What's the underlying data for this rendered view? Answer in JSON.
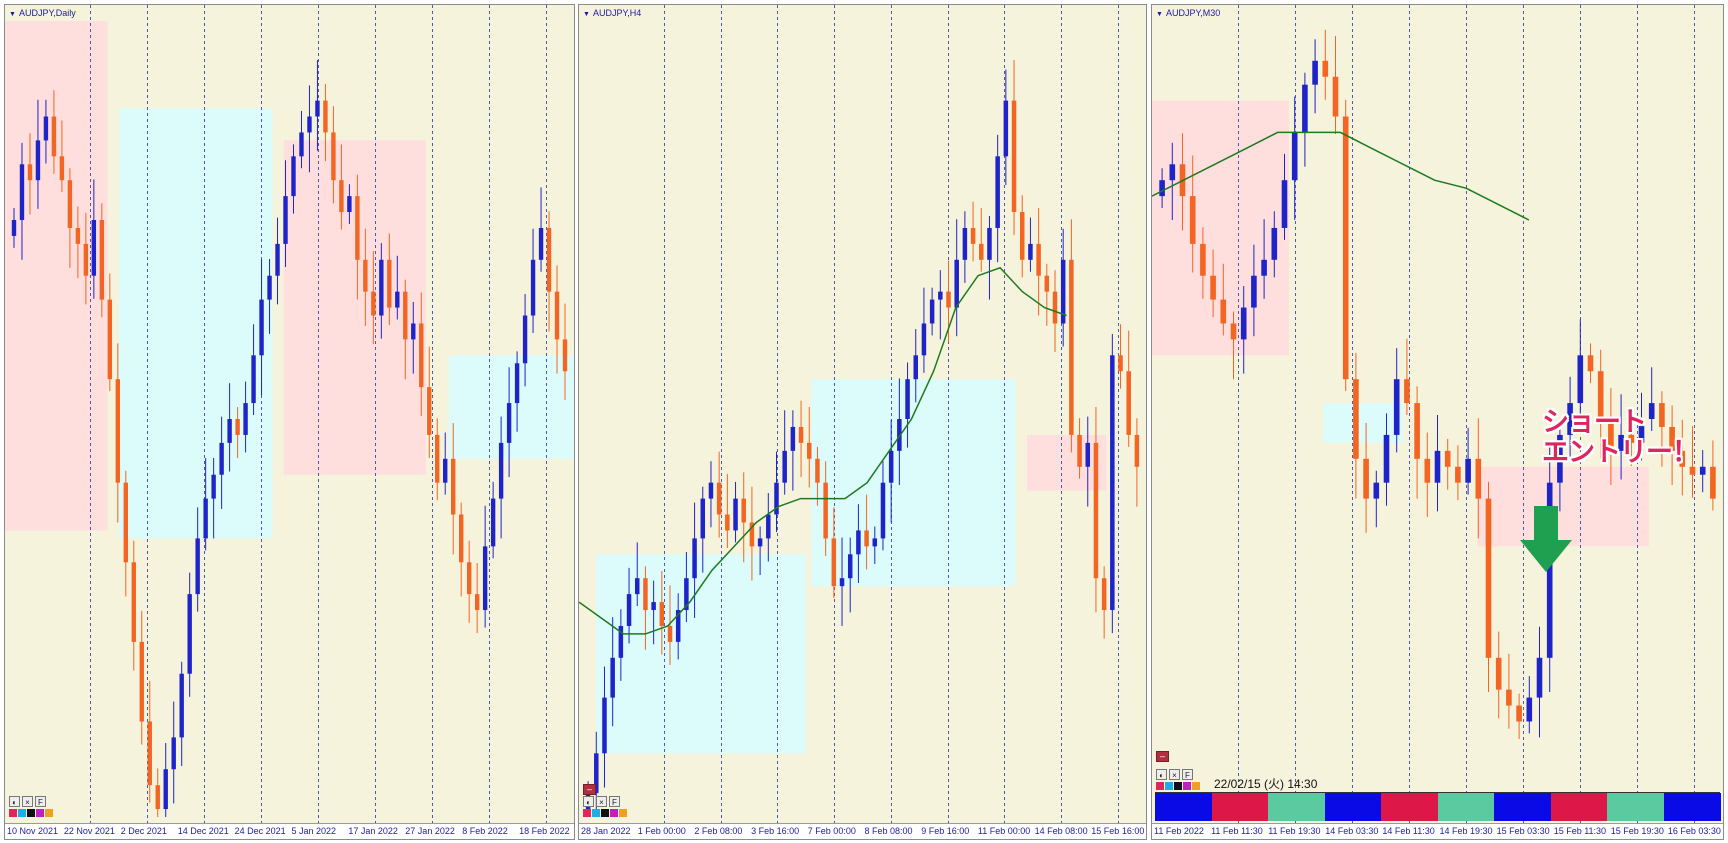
{
  "charts": [
    {
      "id": "daily",
      "title": "AUDJPY,Daily",
      "x_labels": [
        "10 Nov 2021",
        "22 Nov 2021",
        "2 Dec 2021",
        "14 Dec 2021",
        "24 Dec 2021",
        "5 Jan 2022",
        "17 Jan 2022",
        "27 Jan 2022",
        "8 Feb 2022",
        "18 Feb 2022"
      ],
      "tools": {
        "close_label": "×",
        "f_label": "F"
      }
    },
    {
      "id": "h4",
      "title": "AUDJPY,H4",
      "x_labels": [
        "28 Jan 2022",
        "1 Feb 00:00",
        "2 Feb 08:00",
        "3 Feb 16:00",
        "7 Feb 00:00",
        "8 Feb 08:00",
        "9 Feb 16:00",
        "11 Feb 00:00",
        "14 Feb 08:00",
        "15 Feb 16:00"
      ],
      "tools": {
        "close_label": "×",
        "f_label": "F"
      }
    },
    {
      "id": "m30",
      "title": "AUDJPY,M30",
      "x_labels": [
        "11 Feb 2022",
        "11 Feb 11:30",
        "11 Feb 19:30",
        "14 Feb 03:30",
        "14 Feb 11:30",
        "14 Feb 19:30",
        "15 Feb 03:30",
        "15 Feb 11:30",
        "15 Feb 19:30",
        "16 Feb 03:30"
      ],
      "tools": {
        "close_label": "×",
        "f_label": "F"
      },
      "timestamp": "22/02/15 (火) 14:30",
      "annotation": [
        "ショート",
        "エントリー！"
      ]
    }
  ],
  "colors": {
    "background": "#f6f3dc",
    "bull_candle": "#1e24c8",
    "bear_candle": "#f26522",
    "ma_line": "#1e7a1e",
    "zone_pink": "#ffdede",
    "zone_cyan": "#dcfbfb",
    "grid_line": "#2233aa",
    "annotation_text": "#e0245e",
    "arrow": "#1fa050",
    "session_colors": [
      "#0a0ae6",
      "#dd1848",
      "#5ccaa0"
    ]
  },
  "session_bar": [
    "blue",
    "red",
    "green",
    "blue",
    "red",
    "green",
    "blue",
    "red",
    "green",
    "blue"
  ],
  "chart_data": [
    {
      "type": "candlestick",
      "title": "AUDJPY,Daily",
      "x": [
        "10 Nov 2021",
        "22 Nov 2021",
        "2 Dec 2021",
        "14 Dec 2021",
        "24 Dec 2021",
        "5 Jan 2022",
        "17 Jan 2022",
        "27 Jan 2022",
        "8 Feb 2022",
        "18 Feb 2022"
      ],
      "close_path": [
        0.75,
        0.82,
        0.8,
        0.85,
        0.88,
        0.83,
        0.8,
        0.74,
        0.72,
        0.68,
        0.75,
        0.65,
        0.55,
        0.42,
        0.32,
        0.22,
        0.12,
        0.04,
        0.01,
        0.06,
        0.1,
        0.18,
        0.28,
        0.35,
        0.4,
        0.43,
        0.47,
        0.5,
        0.48,
        0.52,
        0.58,
        0.65,
        0.68,
        0.72,
        0.78,
        0.83,
        0.86,
        0.88,
        0.9,
        0.86,
        0.8,
        0.76,
        0.78,
        0.7,
        0.66,
        0.63,
        0.7,
        0.64,
        0.66,
        0.6,
        0.62,
        0.54,
        0.48,
        0.42,
        0.45,
        0.38,
        0.32,
        0.28,
        0.26,
        0.34,
        0.4,
        0.47,
        0.52,
        0.57,
        0.63,
        0.7,
        0.74,
        0.66,
        0.6,
        0.56
      ],
      "zones": [
        {
          "color": "pink",
          "from": 0.0,
          "to": 0.18,
          "low": 0.36,
          "high": 1.0
        },
        {
          "color": "cyan",
          "from": 0.2,
          "to": 0.47,
          "low": 0.35,
          "high": 0.89
        },
        {
          "color": "pink",
          "from": 0.49,
          "to": 0.74,
          "low": 0.43,
          "high": 0.85
        },
        {
          "color": "cyan",
          "from": 0.78,
          "to": 1.0,
          "low": 0.45,
          "high": 0.58
        }
      ]
    },
    {
      "type": "candlestick",
      "title": "AUDJPY,H4",
      "x": [
        "28 Jan 2022",
        "1 Feb 00:00",
        "2 Feb 08:00",
        "3 Feb 16:00",
        "7 Feb 00:00",
        "8 Feb 08:00",
        "9 Feb 16:00",
        "11 Feb 00:00",
        "14 Feb 08:00",
        "15 Feb 16:00"
      ],
      "close_path": [
        0.03,
        0.08,
        0.15,
        0.2,
        0.24,
        0.28,
        0.3,
        0.26,
        0.27,
        0.24,
        0.22,
        0.26,
        0.3,
        0.35,
        0.4,
        0.42,
        0.38,
        0.36,
        0.4,
        0.37,
        0.34,
        0.35,
        0.38,
        0.42,
        0.46,
        0.49,
        0.47,
        0.45,
        0.42,
        0.35,
        0.29,
        0.3,
        0.33,
        0.36,
        0.34,
        0.35,
        0.42,
        0.46,
        0.5,
        0.55,
        0.58,
        0.62,
        0.65,
        0.66,
        0.64,
        0.7,
        0.74,
        0.72,
        0.7,
        0.74,
        0.83,
        0.9,
        0.76,
        0.7,
        0.72,
        0.68,
        0.66,
        0.62,
        0.7,
        0.48,
        0.44,
        0.47,
        0.3,
        0.26,
        0.58,
        0.56,
        0.48,
        0.44
      ],
      "ma": [
        0.27,
        0.25,
        0.23,
        0.23,
        0.24,
        0.27,
        0.31,
        0.34,
        0.37,
        0.39,
        0.4,
        0.4,
        0.4,
        0.42,
        0.46,
        0.5,
        0.56,
        0.64,
        0.68,
        0.69,
        0.66,
        0.64,
        0.63
      ],
      "zones": [
        {
          "color": "cyan",
          "from": 0.03,
          "to": 0.4,
          "low": 0.08,
          "high": 0.33
        },
        {
          "color": "cyan",
          "from": 0.41,
          "to": 0.77,
          "low": 0.29,
          "high": 0.55
        },
        {
          "color": "pink",
          "from": 0.79,
          "to": 0.93,
          "low": 0.41,
          "high": 0.48
        }
      ]
    },
    {
      "type": "candlestick",
      "title": "AUDJPY,M30",
      "x": [
        "11 Feb 2022",
        "11 Feb 11:30",
        "11 Feb 19:30",
        "14 Feb 03:30",
        "14 Feb 11:30",
        "14 Feb 19:30",
        "15 Feb 03:30",
        "15 Feb 11:30",
        "15 Feb 19:30",
        "16 Feb 03:30"
      ],
      "close_path": [
        0.8,
        0.82,
        0.78,
        0.72,
        0.68,
        0.65,
        0.62,
        0.6,
        0.64,
        0.68,
        0.7,
        0.74,
        0.8,
        0.86,
        0.92,
        0.95,
        0.93,
        0.88,
        0.55,
        0.45,
        0.4,
        0.42,
        0.48,
        0.55,
        0.52,
        0.45,
        0.42,
        0.46,
        0.44,
        0.42,
        0.45,
        0.4,
        0.2,
        0.16,
        0.14,
        0.12,
        0.15,
        0.2,
        0.42,
        0.48,
        0.52,
        0.58,
        0.56,
        0.5,
        0.46,
        0.48,
        0.47,
        0.5,
        0.52,
        0.49,
        0.46,
        0.44,
        0.43,
        0.44,
        0.4
      ],
      "ma": [
        0.78,
        0.8,
        0.82,
        0.84,
        0.86,
        0.86,
        0.86,
        0.84,
        0.82,
        0.8,
        0.79,
        0.77,
        0.75
      ],
      "zones": [
        {
          "color": "pink",
          "from": 0.0,
          "to": 0.24,
          "low": 0.58,
          "high": 0.9
        },
        {
          "color": "cyan",
          "from": 0.3,
          "to": 0.44,
          "low": 0.47,
          "high": 0.52
        },
        {
          "color": "pink",
          "from": 0.57,
          "to": 0.87,
          "low": 0.34,
          "high": 0.44
        }
      ]
    }
  ]
}
